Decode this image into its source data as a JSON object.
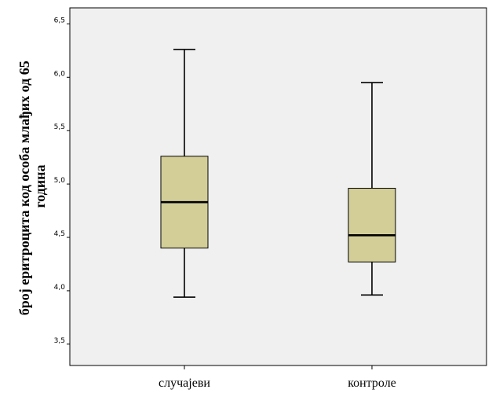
{
  "chart_data": {
    "type": "boxplot",
    "ylabel_lines": [
      "број еритроцита код особа млађих од 65",
      "година"
    ],
    "ylim": [
      3.3,
      6.65
    ],
    "yticks": [
      {
        "value": 3.5,
        "label": "3,5"
      },
      {
        "value": 4.0,
        "label": "4,0"
      },
      {
        "value": 4.5,
        "label": "4,5"
      },
      {
        "value": 5.0,
        "label": "5,0"
      },
      {
        "value": 5.5,
        "label": "5,5"
      },
      {
        "value": 6.0,
        "label": "6,0"
      },
      {
        "value": 6.5,
        "label": "6,5"
      }
    ],
    "categories": [
      "случајеви",
      "контроле"
    ],
    "boxes": [
      {
        "category": "случајеви",
        "min": 3.94,
        "q1": 4.4,
        "median": 4.83,
        "q3": 5.26,
        "max": 6.26
      },
      {
        "category": "контроле",
        "min": 3.96,
        "q1": 4.27,
        "median": 4.52,
        "q3": 4.96,
        "max": 5.95
      }
    ],
    "colors": {
      "plot_background": "#f0f0f0",
      "box_fill": "#d3ce97",
      "line": "#000000"
    },
    "grid": false
  }
}
